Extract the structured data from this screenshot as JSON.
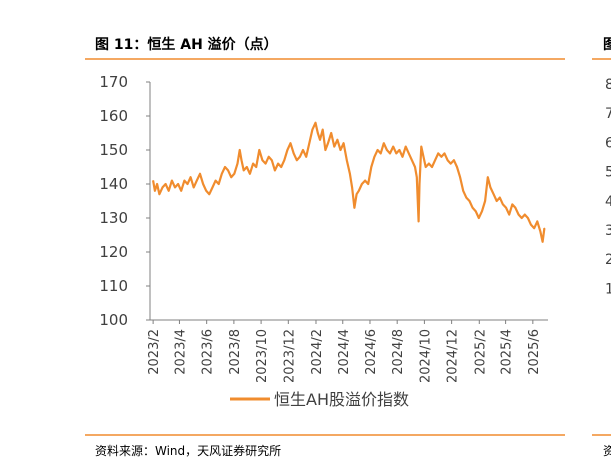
{
  "header": {
    "title": "图 11：恒生 AH 溢价（点）",
    "right_panel_title_glyph": "图"
  },
  "footer": {
    "source": "资料来源：Wind，天风证券研究所",
    "right_source_glyph": "资"
  },
  "colors": {
    "accent": "#f08c2e",
    "axis": "#808080",
    "text": "#404040"
  },
  "right_panel_ticks": [
    "8",
    "7",
    "6",
    "5",
    "4",
    "3",
    "2",
    "1"
  ],
  "chart_data": {
    "type": "line",
    "title": "",
    "xlabel": "",
    "ylabel": "",
    "ylim": [
      100,
      170
    ],
    "yticks": [
      100,
      110,
      120,
      130,
      140,
      150,
      160,
      170
    ],
    "xlim": [
      "2023-01-25",
      "2025-07-05"
    ],
    "xticks": [
      "2023/2",
      "2023/4",
      "2023/6",
      "2023/8",
      "2023/10",
      "2023/12",
      "2024/2",
      "2024/4",
      "2024/6",
      "2024/8",
      "2024/10",
      "2024/12",
      "2025/2",
      "2025/4",
      "2025/6"
    ],
    "legend": {
      "position": "bottom",
      "entries": [
        "恒生AH股溢价指数"
      ]
    },
    "series": [
      {
        "name": "恒生AH股溢价指数",
        "color": "#f08c2e",
        "points": [
          [
            "2023-02-01",
            141
          ],
          [
            "2023-02-05",
            138
          ],
          [
            "2023-02-10",
            140
          ],
          [
            "2023-02-15",
            137
          ],
          [
            "2023-02-22",
            139
          ],
          [
            "2023-03-01",
            140
          ],
          [
            "2023-03-08",
            138
          ],
          [
            "2023-03-15",
            141
          ],
          [
            "2023-03-22",
            139
          ],
          [
            "2023-03-29",
            140
          ],
          [
            "2023-04-05",
            138
          ],
          [
            "2023-04-12",
            141
          ],
          [
            "2023-04-19",
            140
          ],
          [
            "2023-04-26",
            142
          ],
          [
            "2023-05-03",
            139
          ],
          [
            "2023-05-10",
            141
          ],
          [
            "2023-05-17",
            143
          ],
          [
            "2023-05-24",
            140
          ],
          [
            "2023-05-31",
            138
          ],
          [
            "2023-06-07",
            137
          ],
          [
            "2023-06-14",
            139
          ],
          [
            "2023-06-21",
            141
          ],
          [
            "2023-06-28",
            140
          ],
          [
            "2023-07-05",
            143
          ],
          [
            "2023-07-12",
            145
          ],
          [
            "2023-07-19",
            144
          ],
          [
            "2023-07-26",
            142
          ],
          [
            "2023-08-02",
            143
          ],
          [
            "2023-08-09",
            146
          ],
          [
            "2023-08-14",
            150
          ],
          [
            "2023-08-18",
            147
          ],
          [
            "2023-08-23",
            144
          ],
          [
            "2023-08-30",
            145
          ],
          [
            "2023-09-06",
            143
          ],
          [
            "2023-09-13",
            146
          ],
          [
            "2023-09-20",
            145
          ],
          [
            "2023-09-27",
            150
          ],
          [
            "2023-10-04",
            147
          ],
          [
            "2023-10-11",
            146
          ],
          [
            "2023-10-18",
            148
          ],
          [
            "2023-10-25",
            147
          ],
          [
            "2023-11-01",
            144
          ],
          [
            "2023-11-08",
            146
          ],
          [
            "2023-11-15",
            145
          ],
          [
            "2023-11-22",
            147
          ],
          [
            "2023-11-29",
            150
          ],
          [
            "2023-12-06",
            152
          ],
          [
            "2023-12-13",
            149
          ],
          [
            "2023-12-20",
            147
          ],
          [
            "2023-12-27",
            148
          ],
          [
            "2024-01-03",
            150
          ],
          [
            "2024-01-10",
            148
          ],
          [
            "2024-01-17",
            152
          ],
          [
            "2024-01-24",
            156
          ],
          [
            "2024-01-31",
            158
          ],
          [
            "2024-02-05",
            155
          ],
          [
            "2024-02-10",
            153
          ],
          [
            "2024-02-16",
            156
          ],
          [
            "2024-02-22",
            150
          ],
          [
            "2024-02-28",
            152
          ],
          [
            "2024-03-06",
            155
          ],
          [
            "2024-03-13",
            151
          ],
          [
            "2024-03-20",
            153
          ],
          [
            "2024-03-27",
            150
          ],
          [
            "2024-04-03",
            152
          ],
          [
            "2024-04-10",
            147
          ],
          [
            "2024-04-17",
            143
          ],
          [
            "2024-04-22",
            139
          ],
          [
            "2024-04-27",
            133
          ],
          [
            "2024-05-02",
            137
          ],
          [
            "2024-05-07",
            138
          ],
          [
            "2024-05-14",
            140
          ],
          [
            "2024-05-21",
            141
          ],
          [
            "2024-05-28",
            140
          ],
          [
            "2024-06-04",
            145
          ],
          [
            "2024-06-11",
            148
          ],
          [
            "2024-06-18",
            150
          ],
          [
            "2024-06-25",
            149
          ],
          [
            "2024-07-02",
            152
          ],
          [
            "2024-07-09",
            150
          ],
          [
            "2024-07-16",
            149
          ],
          [
            "2024-07-23",
            151
          ],
          [
            "2024-07-30",
            149
          ],
          [
            "2024-08-06",
            150
          ],
          [
            "2024-08-13",
            148
          ],
          [
            "2024-08-20",
            151
          ],
          [
            "2024-08-27",
            149
          ],
          [
            "2024-09-03",
            147
          ],
          [
            "2024-09-10",
            145
          ],
          [
            "2024-09-14",
            142
          ],
          [
            "2024-09-18",
            129
          ],
          [
            "2024-09-20",
            140
          ],
          [
            "2024-09-24",
            151
          ],
          [
            "2024-09-29",
            148
          ],
          [
            "2024-10-04",
            145
          ],
          [
            "2024-10-11",
            146
          ],
          [
            "2024-10-18",
            145
          ],
          [
            "2024-10-25",
            147
          ],
          [
            "2024-11-01",
            149
          ],
          [
            "2024-11-08",
            148
          ],
          [
            "2024-11-15",
            149
          ],
          [
            "2024-11-22",
            147
          ],
          [
            "2024-11-29",
            146
          ],
          [
            "2024-12-06",
            147
          ],
          [
            "2024-12-13",
            145
          ],
          [
            "2024-12-20",
            142
          ],
          [
            "2024-12-27",
            138
          ],
          [
            "2025-01-03",
            136
          ],
          [
            "2025-01-10",
            135
          ],
          [
            "2025-01-17",
            133
          ],
          [
            "2025-01-24",
            132
          ],
          [
            "2025-01-31",
            130
          ],
          [
            "2025-02-07",
            132
          ],
          [
            "2025-02-14",
            135
          ],
          [
            "2025-02-20",
            142
          ],
          [
            "2025-02-26",
            139
          ],
          [
            "2025-03-05",
            137
          ],
          [
            "2025-03-12",
            135
          ],
          [
            "2025-03-19",
            136
          ],
          [
            "2025-03-26",
            134
          ],
          [
            "2025-04-02",
            133
          ],
          [
            "2025-04-09",
            131
          ],
          [
            "2025-04-16",
            134
          ],
          [
            "2025-04-23",
            133
          ],
          [
            "2025-04-30",
            131
          ],
          [
            "2025-05-07",
            130
          ],
          [
            "2025-05-14",
            131
          ],
          [
            "2025-05-21",
            130
          ],
          [
            "2025-05-28",
            128
          ],
          [
            "2025-06-04",
            127
          ],
          [
            "2025-06-11",
            129
          ],
          [
            "2025-06-18",
            126
          ],
          [
            "2025-06-23",
            123
          ],
          [
            "2025-06-27",
            127
          ]
        ]
      }
    ]
  }
}
